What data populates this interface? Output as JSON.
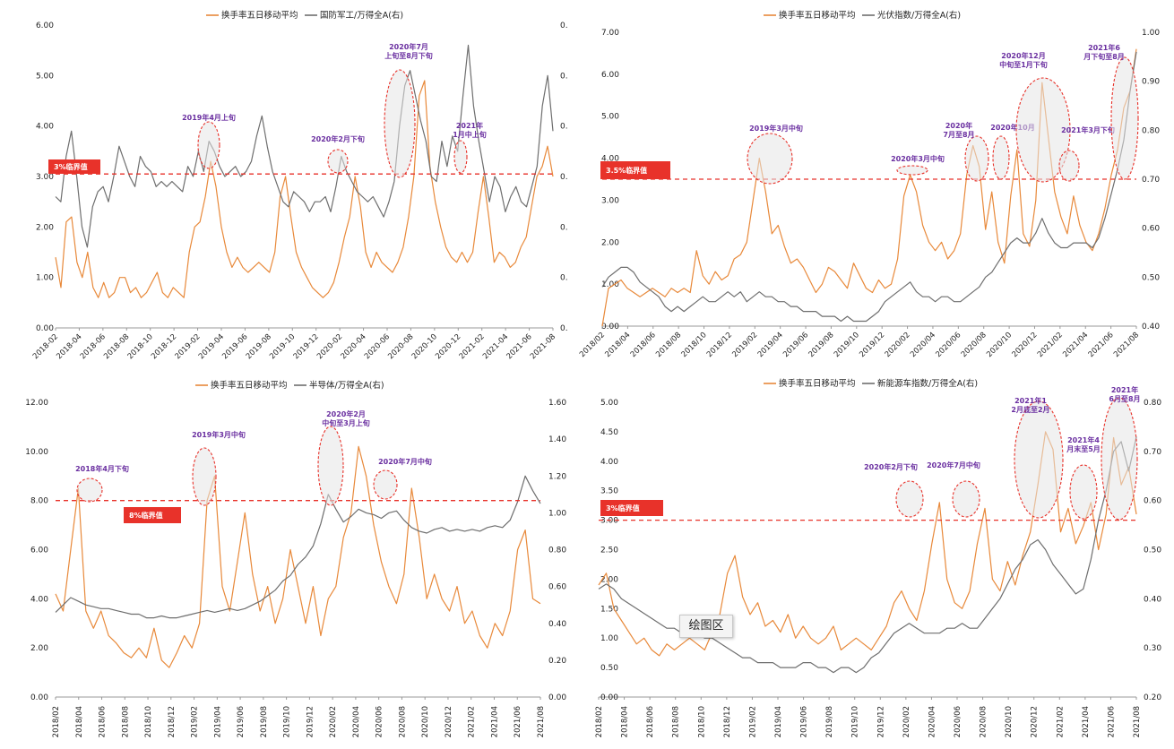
{
  "colors": {
    "turnover": "#e8893a",
    "ratio": "#6e6e6e",
    "threshold": "#e8322a",
    "annotation": "#6a2fa0",
    "bubble_fill": "#e6e6e6"
  },
  "tooltip": {
    "label": "绘图区"
  },
  "chart_data": [
    {
      "type": "line",
      "legend": [
        "换手率五日移动平均",
        "国防军工/万得全A(右)"
      ],
      "x_ticks": [
        "2018-02",
        "2018-04",
        "2018-06",
        "2018-08",
        "2018-10",
        "2018-12",
        "2019-02",
        "2019-04",
        "2019-06",
        "2019-08",
        "2019-10",
        "2019-12",
        "2020-02",
        "2020-04",
        "2020-06",
        "2020-08",
        "2020-10",
        "2020-12",
        "2021-02",
        "2021-04",
        "2021-06",
        "2021-08"
      ],
      "y_left": {
        "ticks": [
          "0.00",
          "1.00",
          "2.00",
          "3.00",
          "4.00",
          "5.00",
          "6.00"
        ],
        "ylim": [
          0,
          6
        ]
      },
      "y_right": {
        "ticks": [
          "0.",
          "0.",
          "0.",
          "0.",
          "0.",
          "0.",
          "0."
        ],
        "ylim": [
          0,
          6
        ]
      },
      "threshold": {
        "value": 3.05,
        "label": "3%临界值"
      },
      "series": [
        {
          "name": "换手率五日移动平均",
          "axis": "left",
          "values": [
            1.4,
            0.8,
            2.1,
            2.2,
            1.3,
            1.0,
            1.5,
            0.8,
            0.6,
            0.9,
            0.6,
            0.7,
            1.0,
            1.0,
            0.7,
            0.8,
            0.6,
            0.7,
            0.9,
            1.1,
            0.7,
            0.6,
            0.8,
            0.7,
            0.6,
            1.5,
            2.0,
            2.1,
            2.6,
            3.3,
            2.8,
            2.0,
            1.5,
            1.2,
            1.4,
            1.2,
            1.1,
            1.2,
            1.3,
            1.2,
            1.1,
            1.5,
            2.6,
            3.0,
            2.2,
            1.5,
            1.2,
            1.0,
            0.8,
            0.7,
            0.6,
            0.7,
            0.9,
            1.3,
            1.8,
            2.2,
            3.0,
            2.4,
            1.5,
            1.2,
            1.5,
            1.3,
            1.2,
            1.1,
            1.3,
            1.6,
            2.2,
            3.0,
            4.6,
            4.9,
            3.2,
            2.5,
            2.0,
            1.6,
            1.4,
            1.3,
            1.5,
            1.3,
            1.5,
            2.3,
            3.0,
            2.2,
            1.3,
            1.5,
            1.4,
            1.2,
            1.3,
            1.6,
            1.8,
            2.4,
            3.0,
            3.2,
            3.6,
            3.0
          ]
        },
        {
          "name": "国防军工/万得全A(右)",
          "axis": "right",
          "values": [
            2.6,
            2.5,
            3.4,
            3.9,
            3.0,
            2.0,
            1.6,
            2.4,
            2.7,
            2.8,
            2.5,
            3.0,
            3.6,
            3.3,
            3.0,
            2.8,
            3.4,
            3.2,
            3.1,
            2.8,
            2.9,
            2.8,
            2.9,
            2.8,
            2.7,
            3.2,
            3.0,
            3.5,
            3.1,
            3.7,
            3.5,
            3.2,
            3.0,
            3.1,
            3.2,
            3.0,
            3.1,
            3.3,
            3.8,
            4.2,
            3.6,
            3.1,
            2.8,
            2.5,
            2.4,
            2.7,
            2.6,
            2.5,
            2.3,
            2.5,
            2.5,
            2.6,
            2.3,
            2.8,
            3.4,
            3.1,
            2.9,
            2.7,
            2.6,
            2.5,
            2.6,
            2.4,
            2.2,
            2.5,
            2.9,
            4.0,
            4.8,
            5.1,
            4.6,
            4.1,
            3.7,
            3.0,
            2.9,
            3.7,
            3.2,
            3.8,
            3.5,
            4.6,
            5.6,
            4.4,
            3.7,
            3.1,
            2.5,
            3.0,
            2.8,
            2.3,
            2.6,
            2.8,
            2.5,
            2.4,
            2.8,
            3.2,
            4.4,
            5.0,
            3.9
          ]
        }
      ],
      "annotations": [
        "2019年4月上旬",
        "2020年2月下旬",
        "2020年7月上旬至8月下旬",
        "2021年1月中上旬"
      ]
    },
    {
      "type": "line",
      "legend": [
        "换手率五日移动平均",
        "光伏指数/万得全A(右)"
      ],
      "x_ticks": [
        "2018/02",
        "2018/04",
        "2018/06",
        "2018/08",
        "2018/10",
        "2018/12",
        "2019/02",
        "2019/04",
        "2019/06",
        "2019/08",
        "2019/10",
        "2019/12",
        "2020/02",
        "2020/04",
        "2020/06",
        "2020/08",
        "2020/10",
        "2020/12",
        "2021/02",
        "2021/04",
        "2021/06",
        "2021/08"
      ],
      "y_left": {
        "ticks": [
          "0.00",
          "1.00",
          "2.00",
          "3.00",
          "4.00",
          "5.00",
          "6.00",
          "7.00"
        ],
        "ylim": [
          0,
          7
        ]
      },
      "y_right": {
        "ticks": [
          "0.40",
          "0.50",
          "0.60",
          "0.70",
          "0.80",
          "0.90",
          "1.00"
        ],
        "ylim": [
          0.4,
          1.0
        ]
      },
      "threshold": {
        "value": 3.5,
        "label": "3.5%临界值"
      },
      "series": [
        {
          "name": "换手率五日移动平均",
          "axis": "left",
          "values": [
            0.0,
            0.9,
            1.0,
            1.1,
            0.9,
            0.8,
            0.7,
            0.8,
            0.9,
            0.8,
            0.7,
            0.9,
            0.8,
            0.9,
            0.8,
            1.8,
            1.2,
            1.0,
            1.3,
            1.1,
            1.2,
            1.6,
            1.7,
            2.0,
            3.0,
            4.0,
            3.2,
            2.2,
            2.4,
            1.9,
            1.5,
            1.6,
            1.4,
            1.1,
            0.8,
            1.0,
            1.4,
            1.3,
            1.1,
            0.9,
            1.5,
            1.2,
            0.9,
            0.8,
            1.1,
            0.9,
            1.0,
            1.6,
            3.1,
            3.6,
            3.2,
            2.4,
            2.0,
            1.8,
            2.0,
            1.6,
            1.8,
            2.2,
            3.6,
            4.3,
            3.8,
            2.3,
            3.2,
            2.0,
            1.5,
            3.1,
            4.2,
            2.2,
            1.9,
            3.0,
            5.8,
            4.5,
            3.2,
            2.6,
            2.2,
            3.1,
            2.4,
            2.0,
            1.8,
            2.2,
            2.8,
            3.6,
            4.2,
            5.2,
            5.6,
            6.6
          ]
        },
        {
          "name": "光伏指数/万得全A(右)",
          "axis": "right",
          "values": [
            0.48,
            0.5,
            0.51,
            0.52,
            0.52,
            0.51,
            0.49,
            0.48,
            0.47,
            0.46,
            0.44,
            0.43,
            0.44,
            0.43,
            0.44,
            0.45,
            0.46,
            0.45,
            0.45,
            0.46,
            0.47,
            0.46,
            0.47,
            0.45,
            0.46,
            0.47,
            0.46,
            0.46,
            0.45,
            0.45,
            0.44,
            0.44,
            0.43,
            0.43,
            0.43,
            0.42,
            0.42,
            0.42,
            0.41,
            0.42,
            0.41,
            0.41,
            0.41,
            0.42,
            0.43,
            0.45,
            0.46,
            0.47,
            0.48,
            0.49,
            0.47,
            0.46,
            0.46,
            0.45,
            0.46,
            0.46,
            0.45,
            0.45,
            0.46,
            0.47,
            0.48,
            0.5,
            0.51,
            0.53,
            0.55,
            0.57,
            0.58,
            0.57,
            0.57,
            0.59,
            0.62,
            0.59,
            0.57,
            0.56,
            0.56,
            0.57,
            0.57,
            0.57,
            0.56,
            0.58,
            0.62,
            0.67,
            0.72,
            0.78,
            0.88,
            0.96
          ]
        }
      ],
      "annotations": [
        "2019年3月中旬",
        "2020年3月中旬",
        "2020年7月至8月",
        "2020年10月",
        "2020年12月中旬至1月下旬",
        "2021年3月下旬",
        "2021年6月下旬至8月"
      ]
    },
    {
      "type": "line",
      "legend": [
        "换手率五日移动平均",
        "半导体/万得全A(右)"
      ],
      "x_ticks": [
        "2018/02",
        "2018/04",
        "2018/06",
        "2018/08",
        "2018/10",
        "2018/12",
        "2019/02",
        "2019/04",
        "2019/06",
        "2019/08",
        "2019/10",
        "2019/12",
        "2020/02",
        "2020/04",
        "2020/06",
        "2020/08",
        "2020/10",
        "2020/12",
        "2021/02",
        "2021/04",
        "2021/06",
        "2021/08"
      ],
      "y_left": {
        "ticks": [
          "0.00",
          "2.00",
          "4.00",
          "6.00",
          "8.00",
          "10.00",
          "12.00"
        ],
        "ylim": [
          0,
          12
        ]
      },
      "y_right": {
        "ticks": [
          "0.00",
          "0.20",
          "0.40",
          "0.60",
          "0.80",
          "1.00",
          "1.20",
          "1.40",
          "1.60"
        ],
        "ylim": [
          0,
          1.6
        ]
      },
      "threshold": {
        "value": 8.0,
        "label": "8%临界值"
      },
      "series": [
        {
          "name": "换手率五日移动平均",
          "axis": "left",
          "values": [
            4.2,
            3.5,
            6.0,
            8.5,
            3.5,
            2.8,
            3.5,
            2.5,
            2.2,
            1.8,
            1.6,
            2.0,
            1.6,
            2.8,
            1.5,
            1.2,
            1.8,
            2.5,
            2.0,
            3.0,
            8.0,
            9.0,
            4.5,
            3.5,
            5.5,
            7.5,
            5.0,
            3.5,
            4.5,
            3.0,
            4.0,
            6.0,
            4.5,
            3.0,
            4.5,
            2.5,
            4.0,
            4.5,
            6.5,
            7.5,
            10.2,
            9.0,
            7.0,
            5.5,
            4.5,
            3.8,
            5.0,
            8.5,
            6.5,
            4.0,
            5.0,
            4.0,
            3.5,
            4.5,
            3.0,
            3.5,
            2.5,
            2.0,
            3.0,
            2.5,
            3.5,
            6.0,
            6.8,
            4.0,
            3.8
          ]
        },
        {
          "name": "半导体/万得全A(右)",
          "axis": "right",
          "values": [
            0.46,
            0.5,
            0.54,
            0.52,
            0.5,
            0.49,
            0.48,
            0.48,
            0.47,
            0.46,
            0.45,
            0.45,
            0.43,
            0.43,
            0.44,
            0.43,
            0.43,
            0.44,
            0.45,
            0.46,
            0.47,
            0.46,
            0.47,
            0.48,
            0.47,
            0.48,
            0.5,
            0.52,
            0.55,
            0.58,
            0.63,
            0.66,
            0.72,
            0.76,
            0.82,
            0.94,
            1.1,
            1.02,
            0.95,
            0.98,
            1.02,
            1.0,
            0.99,
            0.97,
            1.0,
            1.01,
            0.96,
            0.92,
            0.9,
            0.89,
            0.91,
            0.92,
            0.9,
            0.91,
            0.9,
            0.91,
            0.9,
            0.92,
            0.93,
            0.92,
            0.96,
            1.06,
            1.2,
            1.12,
            1.05
          ]
        }
      ],
      "annotations": [
        "2018年4月下旬",
        "2019年3月中旬",
        "2020年2月中旬至3月上旬",
        "2020年7月中旬"
      ]
    },
    {
      "type": "line",
      "legend": [
        "换手率五日移动平均",
        "新能源车指数/万得全A(右)"
      ],
      "x_ticks": [
        "2018/02",
        "2018/04",
        "2018/06",
        "2018/08",
        "2018/10",
        "2018/12",
        "2019/02",
        "2019/04",
        "2019/06",
        "2019/08",
        "2019/10",
        "2019/12",
        "2020/02",
        "2020/04",
        "2020/06",
        "2020/08",
        "2020/10",
        "2020/12",
        "2021/02",
        "2021/04",
        "2021/06",
        "2021/08"
      ],
      "y_left": {
        "ticks": [
          "0.00",
          "0.50",
          "1.00",
          "1.50",
          "2.00",
          "2.50",
          "3.00",
          "3.50",
          "4.00",
          "4.50",
          "5.00"
        ],
        "ylim": [
          0,
          5
        ]
      },
      "y_right": {
        "ticks": [
          "0.20",
          "0.30",
          "0.40",
          "0.50",
          "0.60",
          "0.70",
          "0.80"
        ],
        "ylim": [
          0.2,
          0.8
        ]
      },
      "threshold": {
        "value": 3.0,
        "label": "3%临界值"
      },
      "series": [
        {
          "name": "换手率五日移动平均",
          "axis": "left",
          "values": [
            1.9,
            2.1,
            1.5,
            1.3,
            1.1,
            0.9,
            1.0,
            0.8,
            0.7,
            0.9,
            0.8,
            0.9,
            1.0,
            0.9,
            0.8,
            1.1,
            1.4,
            2.1,
            2.4,
            1.7,
            1.4,
            1.6,
            1.2,
            1.3,
            1.1,
            1.4,
            1.0,
            1.2,
            1.0,
            0.9,
            1.0,
            1.2,
            0.8,
            0.9,
            1.0,
            0.9,
            0.8,
            1.0,
            1.2,
            1.6,
            1.8,
            1.5,
            1.3,
            1.8,
            2.6,
            3.3,
            2.0,
            1.6,
            1.5,
            1.8,
            2.6,
            3.2,
            2.0,
            1.8,
            2.3,
            1.9,
            2.4,
            2.8,
            3.6,
            4.5,
            4.2,
            2.8,
            3.2,
            2.6,
            2.9,
            3.3,
            2.5,
            3.1,
            4.4,
            3.6,
            3.9,
            3.1
          ]
        },
        {
          "name": "新能源车指数/万得全A(右)",
          "axis": "right",
          "values": [
            0.42,
            0.43,
            0.42,
            0.4,
            0.39,
            0.38,
            0.37,
            0.36,
            0.35,
            0.34,
            0.34,
            0.33,
            0.33,
            0.33,
            0.32,
            0.32,
            0.31,
            0.3,
            0.29,
            0.28,
            0.28,
            0.27,
            0.27,
            0.27,
            0.26,
            0.26,
            0.26,
            0.27,
            0.27,
            0.26,
            0.26,
            0.25,
            0.26,
            0.26,
            0.25,
            0.26,
            0.28,
            0.29,
            0.31,
            0.33,
            0.34,
            0.35,
            0.34,
            0.33,
            0.33,
            0.33,
            0.34,
            0.34,
            0.35,
            0.34,
            0.34,
            0.36,
            0.38,
            0.4,
            0.43,
            0.46,
            0.48,
            0.51,
            0.52,
            0.5,
            0.47,
            0.45,
            0.43,
            0.41,
            0.42,
            0.48,
            0.56,
            0.62,
            0.7,
            0.72,
            0.66,
            0.73
          ]
        }
      ],
      "annotations": [
        "2020年2月下旬",
        "2020年7月中旬",
        "2021年12月底至2月",
        "2021年4月末至5月",
        "2021年6月至8月"
      ]
    }
  ]
}
